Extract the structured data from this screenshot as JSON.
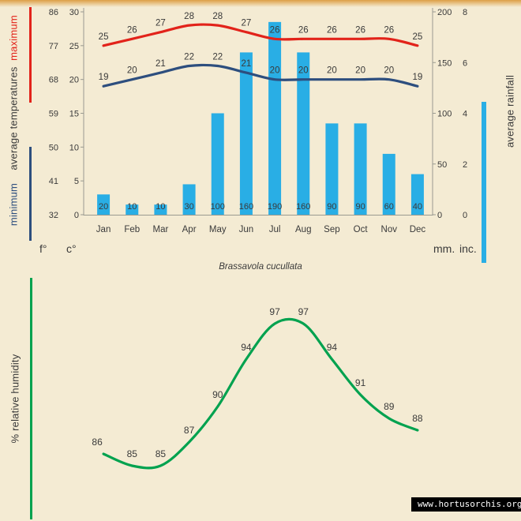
{
  "meta": {
    "title": "Brassavola cucullata",
    "website": "www.hortusorchis.org"
  },
  "colors": {
    "background": "#f4ebd3",
    "max_temp": "#e2231a",
    "min_temp": "#2d4e7e",
    "rainfall": "#29aee5",
    "humidity": "#00a24f",
    "text": "#3a3a3a",
    "axis": "#9a9a90",
    "website_bg": "#000000",
    "website_text": "#ffffff"
  },
  "top_chart": {
    "axis_labels": {
      "maximum": "maximum",
      "average": "average temperatures",
      "minimum": "minimum",
      "rainfall": "average rainfall"
    },
    "units": {
      "f": "f°",
      "c": "c°",
      "mm": "mm.",
      "inc": "inc."
    }
  },
  "humidity_chart": {
    "axis_label": "% relative humidity"
  },
  "chart_data": [
    {
      "type": "bar",
      "subtype": "climogram bar+line combo",
      "title": "Brassavola cucullata",
      "categories": [
        "Jan",
        "Feb",
        "Mar",
        "Apr",
        "May",
        "Jun",
        "Jul",
        "Aug",
        "Sep",
        "Oct",
        "Nov",
        "Dec"
      ],
      "series": [
        {
          "name": "maximum average temperature",
          "type": "line",
          "unit": "°C",
          "color": "#e2231a",
          "values": [
            25,
            26,
            27,
            28,
            28,
            27,
            26,
            26,
            26,
            26,
            26,
            25
          ]
        },
        {
          "name": "minimum average temperature",
          "type": "line",
          "unit": "°C",
          "color": "#2d4e7e",
          "values": [
            19,
            20,
            21,
            22,
            22,
            21,
            20,
            20,
            20,
            20,
            20,
            19
          ]
        },
        {
          "name": "average rainfall",
          "type": "bar",
          "unit": "mm",
          "color": "#29aee5",
          "values": [
            20,
            10,
            10,
            30,
            100,
            160,
            190,
            160,
            90,
            90,
            60,
            40
          ]
        }
      ],
      "axes": {
        "fahrenheit": [
          86,
          77,
          68,
          59,
          50,
          41,
          32
        ],
        "celsius": [
          30,
          25,
          20,
          15,
          10,
          5,
          0
        ],
        "celsius_range": [
          0,
          30
        ],
        "mm": [
          200,
          150,
          100,
          50,
          0
        ],
        "mm_range": [
          0,
          200
        ],
        "inches": [
          8,
          6,
          4,
          2,
          0
        ]
      },
      "grid": false,
      "legend_position": "rotated side labels"
    },
    {
      "type": "line",
      "name": "% relative humidity",
      "color": "#00a24f",
      "categories": [
        "Jan",
        "Feb",
        "Mar",
        "Apr",
        "May",
        "Jun",
        "Jul",
        "Aug",
        "Sep",
        "Oct",
        "Nov",
        "Dec"
      ],
      "values": [
        86,
        85,
        85,
        87,
        90,
        94,
        97,
        97,
        94,
        91,
        89,
        88
      ],
      "ylim": [
        83,
        99
      ]
    }
  ]
}
